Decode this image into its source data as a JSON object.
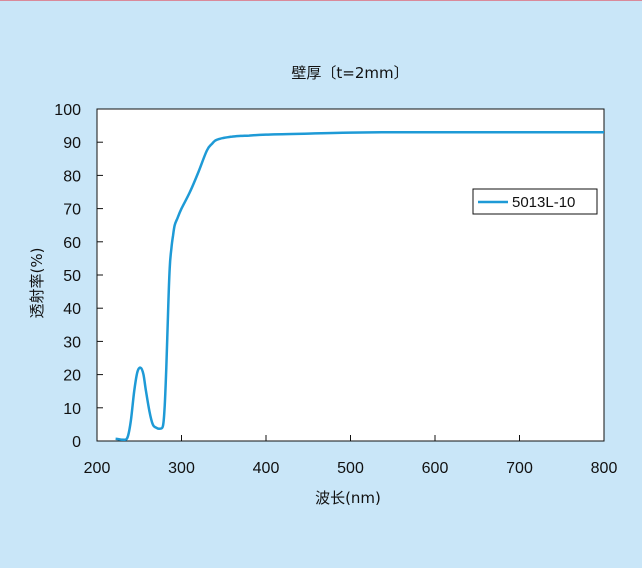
{
  "chart_data": {
    "type": "line",
    "title": "壁厚〔t=2mm〕",
    "xlabel": "波长(nm)",
    "ylabel": "透射率(%)",
    "xlim": [
      200,
      800
    ],
    "ylim": [
      0,
      100
    ],
    "xticks": [
      200,
      300,
      400,
      500,
      600,
      700,
      800
    ],
    "yticks": [
      0,
      10,
      20,
      30,
      40,
      50,
      60,
      70,
      80,
      90,
      100
    ],
    "grid": false,
    "legend_position": "right",
    "series": [
      {
        "name": "5013L-10",
        "color": "#1e9ad6",
        "x": [
          222,
          230,
          236,
          240,
          244,
          248,
          252,
          255,
          258,
          262,
          266,
          270,
          274,
          278,
          280,
          282,
          284,
          286,
          288,
          290,
          292,
          295,
          300,
          310,
          320,
          330,
          336,
          340,
          345,
          350,
          355,
          360,
          370,
          380,
          400,
          450,
          500,
          550,
          600,
          700,
          800
        ],
        "y": [
          0.7,
          0.4,
          1,
          6,
          15,
          21,
          22,
          20,
          15,
          9,
          5,
          4,
          3.7,
          4.5,
          10,
          22,
          38,
          52,
          58,
          62,
          65,
          67,
          70,
          75,
          81,
          87.5,
          89.5,
          90.5,
          91,
          91.3,
          91.5,
          91.7,
          91.9,
          92,
          92.3,
          92.6,
          92.9,
          93,
          93,
          93,
          93
        ]
      }
    ]
  }
}
